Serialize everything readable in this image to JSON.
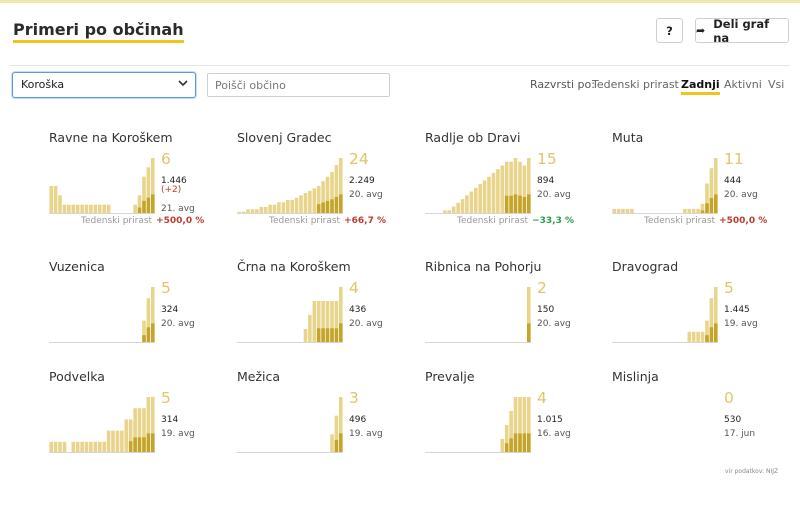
{
  "header": {
    "title": "Primeri po občinah",
    "help_label": "?",
    "share_label": "Deli graf na"
  },
  "filters": {
    "region_selected": "Koroška",
    "search_placeholder": "Poišči občino"
  },
  "sort": {
    "label": "Razvrsti po:",
    "options": [
      "Tedenski prirast",
      "Zadnji",
      "Aktivni",
      "Vsi"
    ],
    "active": "Zadnji"
  },
  "colors": {
    "accent": "#f0c419",
    "bar_light": "#e8d58b",
    "bar_dark": "#c4a52a",
    "growth_pos": "#c0392b",
    "growth_neg": "#27a04a",
    "value_big": "#e2c56a"
  },
  "municipalities": [
    {
      "name": "Ravne na Koroškem",
      "active": "6",
      "total": "1.446",
      "delta": "(+2)",
      "date": "21. avg",
      "growth_label": "Tedenski prirast",
      "growth": "+500,0 %",
      "bars": [
        3,
        3,
        2,
        1,
        1,
        1,
        1,
        1,
        1,
        1,
        1,
        1,
        1,
        1,
        0,
        0,
        0,
        0,
        0,
        1,
        2,
        4,
        5,
        6
      ]
    },
    {
      "name": "Slovenj Gradec",
      "active": "24",
      "total": "2.249",
      "delta": "",
      "date": "20. avg",
      "growth_label": "Tedenski prirast",
      "growth": "+66,7 %",
      "bars": [
        1,
        1,
        2,
        2,
        2,
        3,
        3,
        4,
        4,
        5,
        5,
        6,
        6,
        7,
        8,
        9,
        10,
        11,
        12,
        14,
        16,
        18,
        21,
        24
      ]
    },
    {
      "name": "Radlje ob Dravi",
      "active": "15",
      "total": "894",
      "delta": "",
      "date": "20. avg",
      "growth_label": "Tedenski prirast",
      "growth": "−33,3 %",
      "bars": [
        0,
        0,
        0,
        0,
        1,
        1,
        2,
        3,
        4,
        5,
        6,
        7,
        8,
        9,
        10,
        11,
        12,
        13,
        14,
        14,
        15,
        14,
        13,
        15
      ]
    },
    {
      "name": "Muta",
      "active": "11",
      "total": "444",
      "delta": "",
      "date": "20. avg",
      "growth_label": "Tedenski prirast",
      "growth": "+500,0 %",
      "bars": [
        1,
        1,
        1,
        1,
        1,
        0,
        0,
        0,
        0,
        0,
        0,
        0,
        0,
        0,
        0,
        0,
        1,
        1,
        1,
        1,
        2,
        6,
        9,
        11
      ]
    },
    {
      "name": "Vuzenica",
      "active": "5",
      "total": "324",
      "delta": "",
      "date": "20. avg",
      "growth_label": "",
      "growth": "",
      "bars": [
        0,
        0,
        0,
        0,
        0,
        0,
        0,
        0,
        0,
        0,
        0,
        0,
        0,
        0,
        0,
        0,
        0,
        0,
        0,
        0,
        0,
        2,
        4,
        5
      ]
    },
    {
      "name": "Črna na Koroškem",
      "active": "4",
      "total": "436",
      "delta": "",
      "date": "20. avg",
      "growth_label": "",
      "growth": "",
      "bars": [
        0,
        0,
        0,
        0,
        0,
        0,
        0,
        0,
        0,
        0,
        0,
        0,
        0,
        0,
        0,
        1,
        2,
        3,
        3,
        3,
        3,
        3,
        3,
        4
      ]
    },
    {
      "name": "Ribnica na Pohorju",
      "active": "2",
      "total": "150",
      "delta": "",
      "date": "20. avg",
      "growth_label": "",
      "growth": "",
      "bars": [
        0,
        0,
        0,
        0,
        0,
        0,
        0,
        0,
        0,
        0,
        0,
        0,
        0,
        0,
        0,
        0,
        0,
        0,
        0,
        0,
        0,
        0,
        0,
        2
      ]
    },
    {
      "name": "Dravograd",
      "active": "5",
      "total": "1.445",
      "delta": "",
      "date": "19. avg",
      "growth_label": "",
      "growth": "",
      "bars": [
        0,
        0,
        0,
        0,
        0,
        0,
        0,
        0,
        0,
        0,
        0,
        0,
        0,
        0,
        0,
        0,
        0,
        1,
        1,
        1,
        1,
        2,
        4,
        5
      ]
    },
    {
      "name": "Podvelka",
      "active": "5",
      "total": "314",
      "delta": "",
      "date": "19. avg",
      "growth_label": "",
      "growth": "",
      "bars": [
        1,
        1,
        1,
        1,
        0,
        1,
        1,
        1,
        1,
        1,
        1,
        1,
        1,
        2,
        2,
        2,
        2,
        3,
        3,
        4,
        4,
        4,
        5,
        5
      ]
    },
    {
      "name": "Mežica",
      "active": "3",
      "total": "496",
      "delta": "",
      "date": "19. avg",
      "growth_label": "",
      "growth": "",
      "bars": [
        0,
        0,
        0,
        0,
        0,
        0,
        0,
        0,
        0,
        0,
        0,
        0,
        0,
        0,
        0,
        0,
        0,
        0,
        0,
        0,
        0,
        1,
        2,
        3
      ]
    },
    {
      "name": "Prevalje",
      "active": "4",
      "total": "1.015",
      "delta": "",
      "date": "16. avg",
      "growth_label": "",
      "growth": "",
      "bars": [
        0,
        0,
        0,
        0,
        0,
        0,
        0,
        0,
        0,
        0,
        0,
        0,
        0,
        0,
        0,
        0,
        0,
        1,
        2,
        3,
        4,
        4,
        4,
        4
      ]
    },
    {
      "name": "Mislinja",
      "active": "0",
      "total": "530",
      "delta": "",
      "date": "17. jun",
      "growth_label": "",
      "growth": "",
      "bars": []
    }
  ],
  "footer": {
    "source": "vir podatkov: NIJZ"
  }
}
